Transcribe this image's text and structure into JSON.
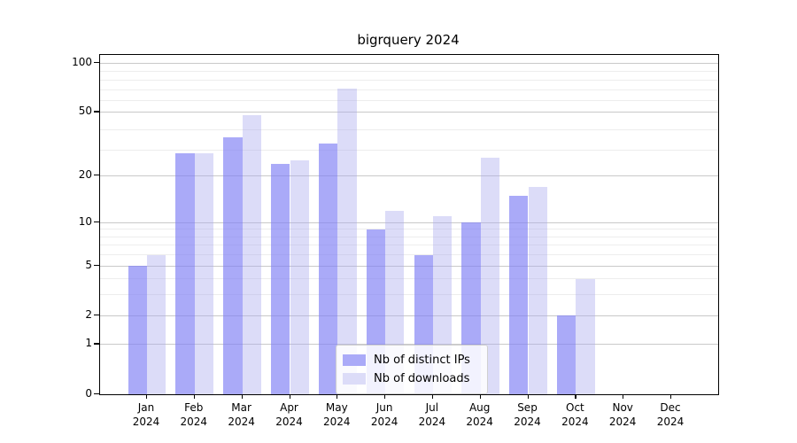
{
  "title": "bigrquery 2024",
  "chart_data": {
    "type": "bar",
    "title": "bigrquery 2024",
    "categories": [
      "Jan 2024",
      "Feb 2024",
      "Mar 2024",
      "Apr 2024",
      "May 2024",
      "Jun 2024",
      "Jul 2024",
      "Aug 2024",
      "Sep 2024",
      "Oct 2024",
      "Nov 2024",
      "Dec 2024"
    ],
    "series": [
      {
        "name": "Nb of distinct IPs",
        "values": [
          5,
          28,
          35,
          24,
          32,
          9,
          6,
          10,
          15,
          2,
          0,
          0
        ],
        "fill": "rgba(126,126,244,0.66)",
        "swatch_color": "#aaaaf8"
      },
      {
        "name": "Nb of downloads",
        "values": [
          6,
          28,
          48,
          25,
          70,
          12,
          11,
          26,
          17,
          4,
          0,
          0
        ],
        "fill": "rgba(172,172,238,0.42)",
        "swatch_color": "#dcdcf8"
      }
    ],
    "y_scale": "log1p",
    "y_ticks": [
      0,
      1,
      2,
      5,
      10,
      20,
      50,
      100
    ],
    "y_minor_ticks": [
      3,
      4,
      6,
      7,
      8,
      9,
      29,
      39,
      59,
      69,
      79,
      89
    ],
    "ylim": [
      0,
      112
    ],
    "xlabel": "",
    "ylabel": "",
    "grid": true,
    "legend_position": "lower center",
    "background_color": "#ffffff",
    "major_grid_color": "#c9c9c9",
    "minor_grid_color": "#ededed"
  }
}
